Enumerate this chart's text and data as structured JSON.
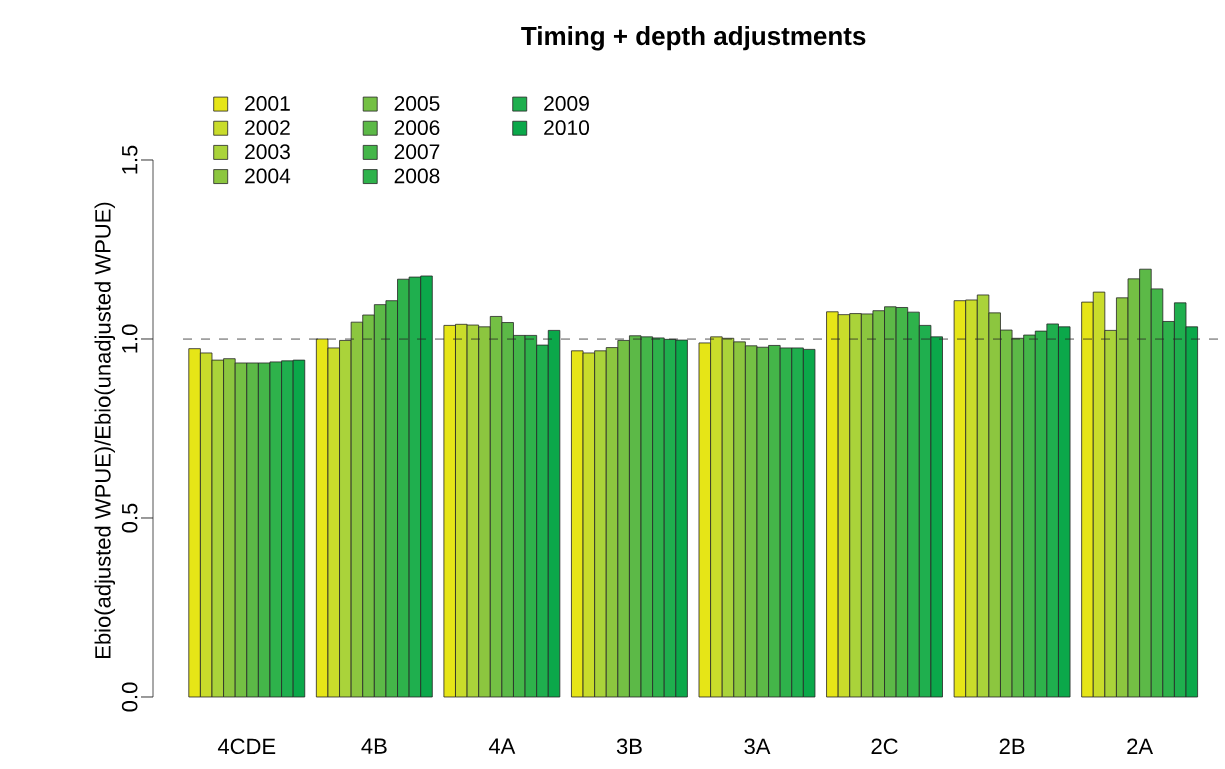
{
  "chart_data": {
    "type": "bar",
    "title": "Timing + depth adjustments",
    "ylabel": "Ebio(adjusted WPUE)/Ebio(unadjusted WPUE)",
    "categories": [
      "4CDE",
      "4B",
      "4A",
      "3B",
      "3A",
      "2C",
      "2B",
      "2A"
    ],
    "series": [
      {
        "name": "2001",
        "color": "#e6e517",
        "values": [
          0.973,
          1.0,
          1.038,
          0.967,
          0.989,
          1.076,
          1.107,
          1.103
        ]
      },
      {
        "name": "2002",
        "color": "#c9dc2b",
        "values": [
          0.961,
          0.975,
          1.041,
          0.961,
          1.006,
          1.068,
          1.109,
          1.131
        ]
      },
      {
        "name": "2003",
        "color": "#aad33a",
        "values": [
          0.941,
          0.996,
          1.039,
          0.967,
          1.002,
          1.071,
          1.123,
          1.024
        ]
      },
      {
        "name": "2004",
        "color": "#8cc63f",
        "values": [
          0.945,
          1.047,
          1.034,
          0.976,
          0.992,
          1.07,
          1.073,
          1.115
        ]
      },
      {
        "name": "2005",
        "color": "#74c044",
        "values": [
          0.933,
          1.067,
          1.063,
          0.996,
          0.981,
          1.079,
          1.025,
          1.168
        ]
      },
      {
        "name": "2006",
        "color": "#5cb947",
        "values": [
          0.933,
          1.096,
          1.046,
          1.009,
          0.977,
          1.09,
          1.002,
          1.195
        ]
      },
      {
        "name": "2007",
        "color": "#44b649",
        "values": [
          0.933,
          1.107,
          1.01,
          1.006,
          0.982,
          1.088,
          1.011,
          1.14
        ]
      },
      {
        "name": "2008",
        "color": "#2eb24b",
        "values": [
          0.936,
          1.167,
          1.01,
          1.003,
          0.975,
          1.075,
          1.022,
          1.049
        ]
      },
      {
        "name": "2009",
        "color": "#1faf4e",
        "values": [
          0.939,
          1.173,
          0.983,
          0.999,
          0.975,
          1.038,
          1.042,
          1.101
        ]
      },
      {
        "name": "2010",
        "color": "#0ba84a",
        "values": [
          0.941,
          1.176,
          1.024,
          0.997,
          0.971,
          1.006,
          1.034,
          1.034
        ]
      }
    ],
    "ylim": [
      0,
      1.5
    ],
    "yticks": [
      {
        "value": 0,
        "label": "0.0"
      },
      {
        "value": 0.5,
        "label": "0.5"
      },
      {
        "value": 1,
        "label": "1.0"
      },
      {
        "value": 1.5,
        "label": "1.5"
      }
    ],
    "ref_lines": [
      {
        "axis": "y",
        "value": 1,
        "line_style": "dashed"
      }
    ],
    "legend": "top left"
  }
}
